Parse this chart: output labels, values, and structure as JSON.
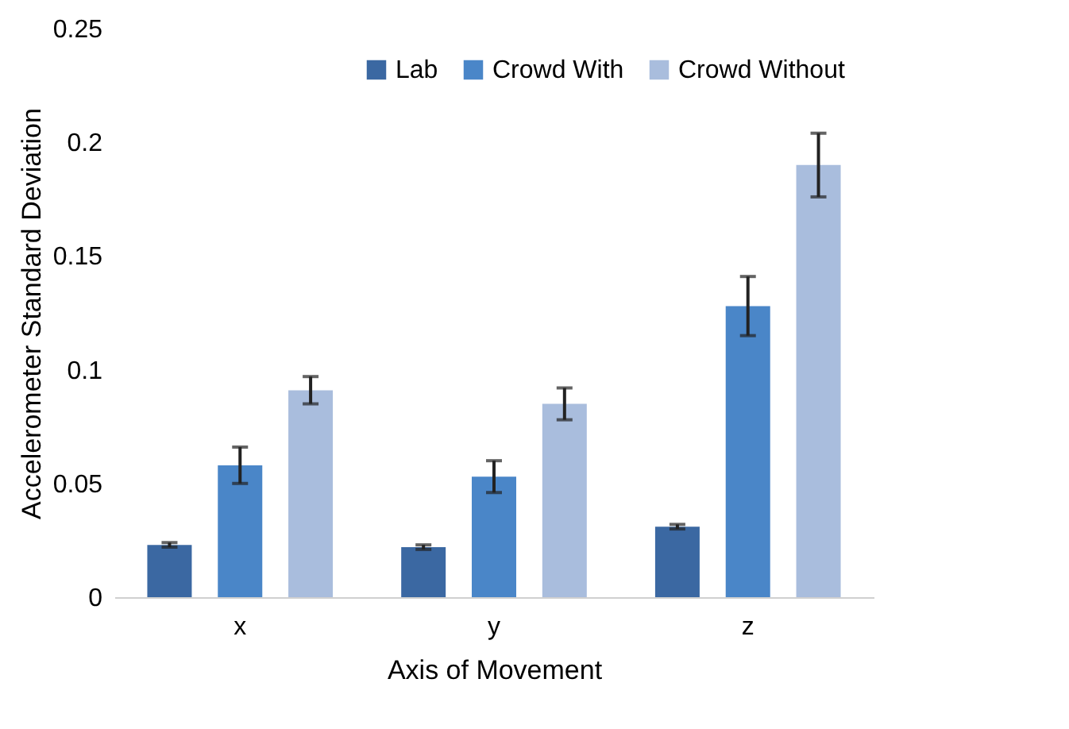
{
  "chart_data": {
    "type": "bar",
    "xlabel": "Axis of Movement",
    "ylabel": "Accelerometer Standard Deviation",
    "categories": [
      "x",
      "y",
      "z"
    ],
    "series": [
      {
        "name": "Lab",
        "color": "#3b68a2",
        "values": [
          0.023,
          0.022,
          0.031
        ],
        "errors": [
          0.001,
          0.001,
          0.001
        ]
      },
      {
        "name": "Crowd With",
        "color": "#4a86c8",
        "values": [
          0.058,
          0.053,
          0.128
        ],
        "errors": [
          0.008,
          0.007,
          0.013
        ]
      },
      {
        "name": "Crowd Without",
        "color": "#a9bddd",
        "values": [
          0.091,
          0.085,
          0.19
        ],
        "errors": [
          0.006,
          0.007,
          0.014
        ]
      }
    ],
    "ylim": [
      0,
      0.25
    ],
    "yticks": [
      0,
      0.05,
      0.1,
      0.15,
      0.2,
      0.25
    ],
    "grid": false,
    "legend": "top right"
  }
}
